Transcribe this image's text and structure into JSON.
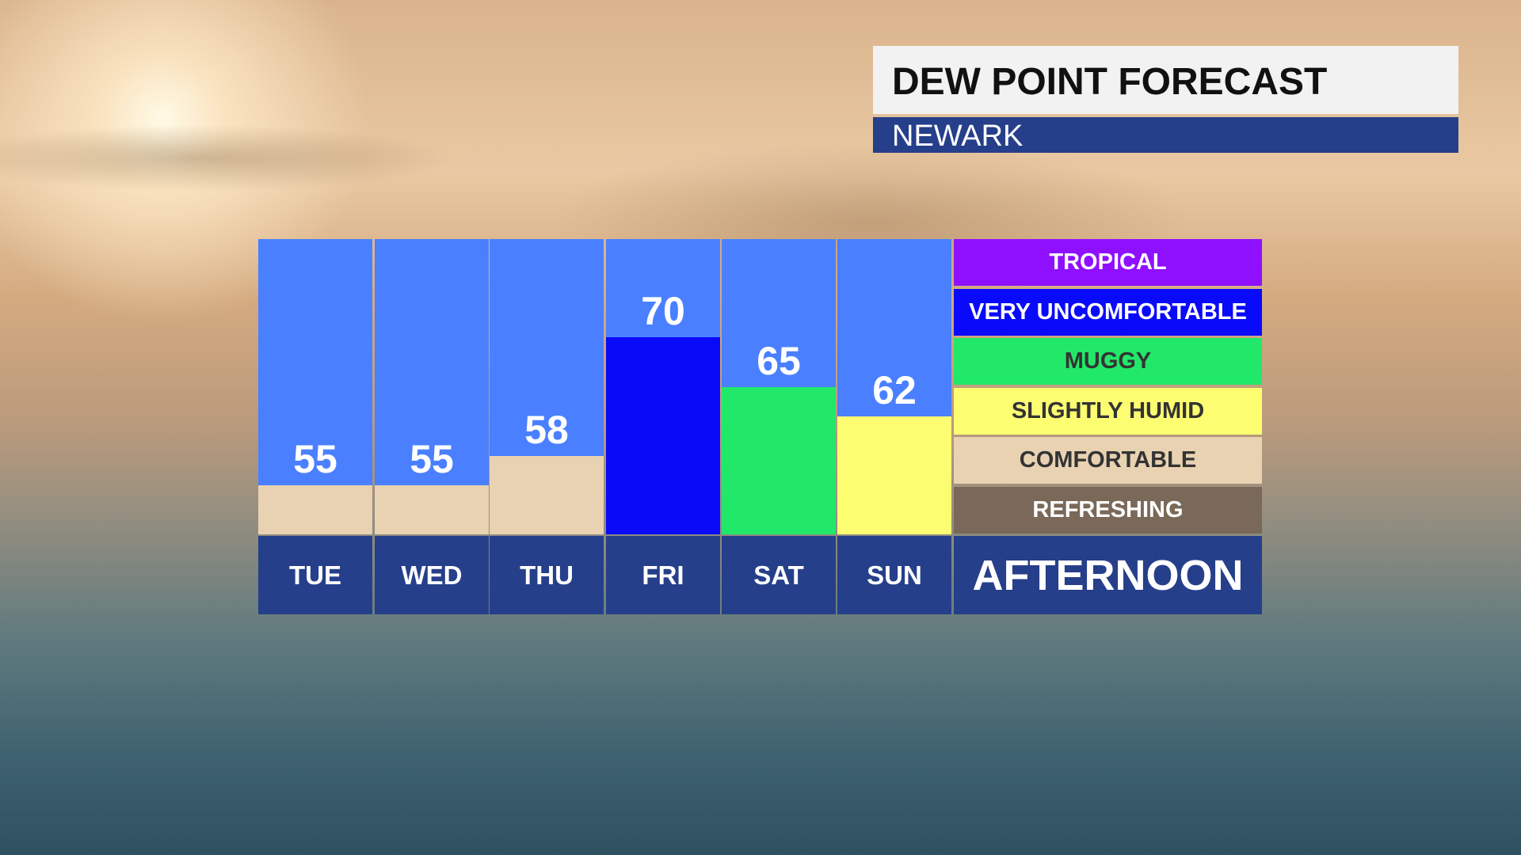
{
  "header": {
    "title": "DEW POINT FORECAST",
    "subtitle": "NEWARK"
  },
  "chart_data": {
    "type": "bar",
    "categories": [
      "TUE",
      "WED",
      "THU",
      "FRI",
      "SAT",
      "SUN"
    ],
    "values": [
      55,
      55,
      58,
      70,
      65,
      62
    ],
    "ylim": [
      50,
      80
    ],
    "grid": false,
    "bar_colors": [
      "#e8d2b2",
      "#e8d2b2",
      "#e8d2b2",
      "#0a0af8",
      "#22e86a",
      "#fdfd72"
    ],
    "background_color": "#4a80ff",
    "legend": [
      {
        "label": "TROPICAL",
        "color": "#8f10ff",
        "text_color": "#ffffff"
      },
      {
        "label": "VERY UNCOMFORTABLE",
        "color": "#0a0afa",
        "text_color": "#ffffff"
      },
      {
        "label": "MUGGY",
        "color": "#22e86a",
        "text_color": "#333333"
      },
      {
        "label": "SLIGHTLY HUMID",
        "color": "#fdfd72",
        "text_color": "#333333"
      },
      {
        "label": "COMFORTABLE",
        "color": "#e8d2b2",
        "text_color": "#333333"
      },
      {
        "label": "REFRESHING",
        "color": "#7a6858",
        "text_color": "#ffffff"
      }
    ],
    "legend_placement": "right",
    "period_label": "AFTERNOON"
  }
}
